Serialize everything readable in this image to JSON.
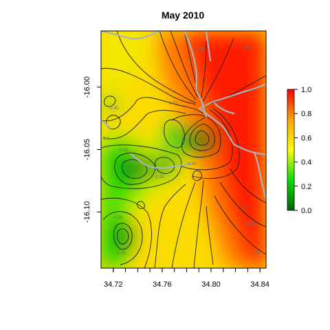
{
  "chart_data": {
    "type": "heatmap",
    "title": "May 2010",
    "xlabel": "",
    "ylabel": "",
    "x_ticks": [
      "34.72",
      "34.76",
      "34.80",
      "34.84"
    ],
    "y_ticks": [
      "-16.00",
      "-16.05",
      "-16.10"
    ],
    "xlim": [
      34.71,
      34.845
    ],
    "ylim": [
      -16.145,
      -15.955
    ],
    "zlim": [
      0.0,
      1.0
    ],
    "colorbar_ticks": [
      "0.0",
      "0.2",
      "0.4",
      "0.6",
      "0.8",
      "1.0"
    ],
    "colorscale": [
      "#006400",
      "#00e000",
      "#ffff00",
      "#ffa500",
      "#ff0000"
    ],
    "contour_labels": [
      "0.85",
      "0.8",
      "0.55",
      "0.45",
      "0.5",
      "0.45",
      "0.1",
      "0.35",
      "0.15",
      "0.9",
      "0.85",
      "0.75",
      "0.35",
      "0.25"
    ],
    "features": [
      "river-lines",
      "contour-lines"
    ],
    "grid": false,
    "legend": "colorbar-right"
  }
}
